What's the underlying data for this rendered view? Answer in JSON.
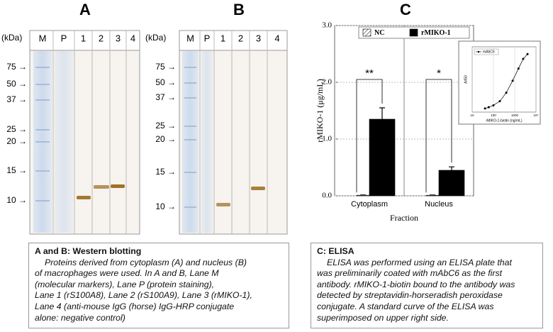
{
  "panel_a": {
    "label": "A",
    "unit": "(kDa)",
    "lanes": [
      "M",
      "P",
      "1",
      "2",
      "3",
      "4"
    ],
    "markers": [
      "75 →",
      "50 →",
      "37 →",
      "25 →",
      "20 →",
      "15 →",
      "10 →"
    ]
  },
  "panel_b": {
    "label": "B",
    "unit": "(kDa)",
    "lanes": [
      "M",
      "P",
      "1",
      "2",
      "3",
      "4"
    ],
    "markers": [
      "75 →",
      "50 →",
      "37 →",
      "25 →",
      "20 →",
      "15 →",
      "10 →"
    ]
  },
  "chart_data": [
    {
      "type": "bar",
      "panel_label": "C",
      "y_label": "rMIKO-1 (μg/mL)",
      "x_label": "Fraction",
      "categories": [
        "Cytoplasm",
        "Nucleus"
      ],
      "series": [
        {
          "name": "NC",
          "color": "#ffffff",
          "values": [
            0.01,
            0.01
          ],
          "errors": [
            0.005,
            0.005
          ]
        },
        {
          "name": "rMIKO-1",
          "color": "#000000",
          "values": [
            1.35,
            0.45
          ],
          "errors": [
            0.2,
            0.06
          ]
        }
      ],
      "significance": [
        "**",
        "*"
      ],
      "ylim": [
        0,
        3.0
      ],
      "yticks": [
        {
          "value": 0,
          "label": "0.0"
        },
        {
          "value": 1,
          "label": "1.0"
        },
        {
          "value": 2,
          "label": "2.0"
        },
        {
          "value": 3,
          "label": "3.0"
        }
      ],
      "grid": true
    },
    {
      "type": "line",
      "legend": "mAbC6",
      "y_label": "A450",
      "x_label": "rMIKO-1-biotin (ng/mL)",
      "x": [
        40,
        60,
        100,
        200,
        400,
        800,
        1500,
        2500,
        4000
      ],
      "values": [
        0.15,
        0.2,
        0.28,
        0.45,
        0.8,
        1.3,
        1.8,
        2.2,
        2.4
      ],
      "color": "#000000",
      "log_x": true,
      "xlim": [
        10,
        10000
      ],
      "xticks": [
        10,
        100,
        1000,
        {
          "value": 10000,
          "label": "10⁴"
        }
      ],
      "ylim": [
        0,
        2.7
      ]
    }
  ],
  "captions": [
    {
      "title": "A and B: Western blotting",
      "lines": [
        "Proteins derived from cytoplasm (A) and nucleus (B)",
        "of macrophages were used.  In A and B, Lane M",
        "(molecular markers), Lane P (protein staining),",
        "Lane 1 (rS100A8), Lane 2 (rS100A9), Lane 3 (rMIKO-1),",
        "Lane 4 (anti-mouse IgG (horse) IgG-HRP conjugate",
        "alone: negative control)"
      ]
    },
    {
      "title": "C: ELISA",
      "lines": [
        "ELISA  was performed using an ELISA plate that",
        "was preliminarily coated with mAbC6 as the first",
        "antibody.  rMIKO-1-biotin bound to the antibody was",
        "detected by streptavidin-horseradish peroxidase",
        "conjugate. A standard curve of the ELISA was",
        "superimposed on upper right side."
      ]
    }
  ]
}
